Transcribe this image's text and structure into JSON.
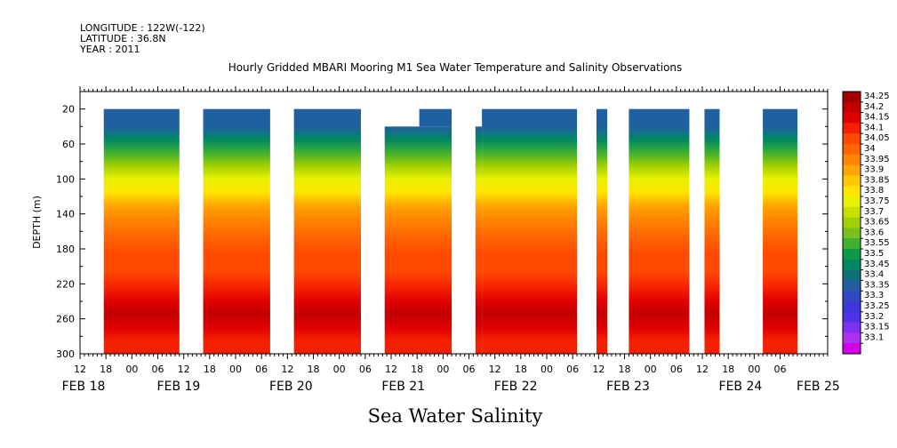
{
  "header": {
    "longitude": "LONGITUDE : 122W(-122)",
    "latitude": "LATITUDE : 36.8N",
    "year": "YEAR : 2011"
  },
  "chart_data": {
    "type": "heatmap",
    "title": "Hourly Gridded MBARI Mooring M1 Sea Water Temperature and Salinity Observations",
    "xlabel": "",
    "ylabel": "DEPTH (m)",
    "bottom_label": "Sea Water Salinity",
    "x_range_hours": [
      0,
      173
    ],
    "x_origin_label": "FEB 18 12:00",
    "y_range": [
      300,
      0
    ],
    "y_ticks": [
      20,
      60,
      100,
      140,
      180,
      220,
      260,
      300
    ],
    "hour_ticks": [
      {
        "h": 0,
        "label": "12"
      },
      {
        "h": 6,
        "label": "18"
      },
      {
        "h": 12,
        "label": "00"
      },
      {
        "h": 18,
        "label": "06"
      },
      {
        "h": 24,
        "label": "12"
      },
      {
        "h": 30,
        "label": "18"
      },
      {
        "h": 36,
        "label": "00"
      },
      {
        "h": 42,
        "label": "06"
      },
      {
        "h": 48,
        "label": "12"
      },
      {
        "h": 54,
        "label": "18"
      },
      {
        "h": 60,
        "label": "00"
      },
      {
        "h": 66,
        "label": "06"
      },
      {
        "h": 72,
        "label": "12"
      },
      {
        "h": 78,
        "label": "18"
      },
      {
        "h": 84,
        "label": "00"
      },
      {
        "h": 90,
        "label": "06"
      },
      {
        "h": 96,
        "label": "12"
      },
      {
        "h": 102,
        "label": "18"
      },
      {
        "h": 108,
        "label": "00"
      },
      {
        "h": 114,
        "label": "06"
      },
      {
        "h": 120,
        "label": "12"
      },
      {
        "h": 126,
        "label": "18"
      },
      {
        "h": 132,
        "label": "00"
      },
      {
        "h": 138,
        "label": "06"
      },
      {
        "h": 144,
        "label": "12"
      },
      {
        "h": 150,
        "label": "18"
      },
      {
        "h": 156,
        "label": "00"
      },
      {
        "h": 162,
        "label": "06"
      }
    ],
    "day_labels": [
      {
        "h": 0,
        "label": "FEB 18"
      },
      {
        "h": 22,
        "label": "FEB 19"
      },
      {
        "h": 48,
        "label": "FEB 20"
      },
      {
        "h": 74,
        "label": "FEB 21"
      },
      {
        "h": 100,
        "label": "FEB 22"
      },
      {
        "h": 126,
        "label": "FEB 23"
      },
      {
        "h": 152,
        "label": "FEB 24"
      },
      {
        "h": 170,
        "label": "FEB 25"
      }
    ],
    "data_segments": [
      {
        "start": 5.5,
        "end": 23,
        "top": 20
      },
      {
        "start": 28.5,
        "end": 44,
        "top": 20
      },
      {
        "start": 49.5,
        "end": 65,
        "top": 20
      },
      {
        "start": 70.5,
        "end": 86,
        "top": 40,
        "notch": {
          "start": 78.5,
          "end": 86,
          "top": 20
        }
      },
      {
        "start": 91.5,
        "end": 93,
        "top": 40
      },
      {
        "start": 93,
        "end": 115,
        "top": 20
      },
      {
        "start": 119.5,
        "end": 122,
        "top": 20
      },
      {
        "start": 127,
        "end": 141,
        "top": 20
      },
      {
        "start": 144.5,
        "end": 148,
        "top": 20
      },
      {
        "start": 158,
        "end": 166,
        "top": 20
      }
    ],
    "profile": [
      {
        "depth": 20,
        "value": 33.36
      },
      {
        "depth": 40,
        "value": 33.38
      },
      {
        "depth": 55,
        "value": 33.45
      },
      {
        "depth": 70,
        "value": 33.55
      },
      {
        "depth": 85,
        "value": 33.65
      },
      {
        "depth": 100,
        "value": 33.75
      },
      {
        "depth": 115,
        "value": 33.83
      },
      {
        "depth": 130,
        "value": 33.9
      },
      {
        "depth": 145,
        "value": 33.97
      },
      {
        "depth": 165,
        "value": 34.02
      },
      {
        "depth": 185,
        "value": 34.05
      },
      {
        "depth": 205,
        "value": 34.08
      },
      {
        "depth": 225,
        "value": 34.12
      },
      {
        "depth": 240,
        "value": 34.16
      },
      {
        "depth": 255,
        "value": 34.2
      },
      {
        "depth": 270,
        "value": 34.18
      },
      {
        "depth": 285,
        "value": 34.14
      },
      {
        "depth": 300,
        "value": 34.12
      }
    ],
    "colorbar": {
      "levels": [
        "34.25",
        "34.2",
        "34.15",
        "34.1",
        "34.05",
        "34",
        "33.95",
        "33.9",
        "33.85",
        "33.8",
        "33.75",
        "33.7",
        "33.65",
        "33.6",
        "33.55",
        "33.5",
        "33.45",
        "33.4",
        "33.35",
        "33.3",
        "33.25",
        "33.2",
        "33.15",
        "33.1"
      ],
      "colors": [
        "#a00000",
        "#c30000",
        "#e00000",
        "#f52000",
        "#ff4a00",
        "#ff6600",
        "#ff8800",
        "#ffa600",
        "#ffc800",
        "#ffe600",
        "#e8f000",
        "#c8e000",
        "#a0d000",
        "#78c020",
        "#40b030",
        "#109848",
        "#008860",
        "#107078",
        "#2060a0",
        "#3048c0",
        "#3c38d8",
        "#5030e8",
        "#8030f0",
        "#b030f0",
        "#d000e8"
      ]
    }
  }
}
